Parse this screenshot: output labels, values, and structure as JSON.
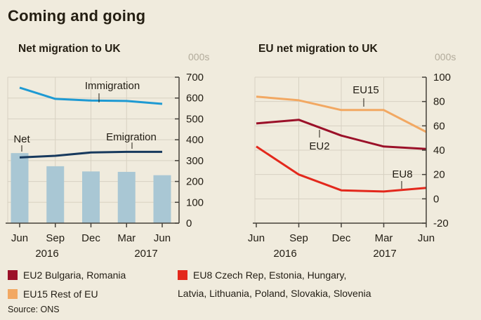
{
  "title": "Coming and going",
  "source": "Source: ONS",
  "colors": {
    "background": "#f0ebdd",
    "grid": "#d7d1c2",
    "axis": "#45413a",
    "text": "#221d14",
    "muted_units": "#b2ab9b",
    "immigration": "#1e9ad3",
    "emigration": "#17395d",
    "net_bar": "#a9c7d4",
    "eu15": "#f2a862",
    "eu2": "#9b1129",
    "eu8": "#e3281c"
  },
  "chart_data": [
    {
      "type": "line",
      "title": "Net migration to UK",
      "unit_label": "000s",
      "categories": [
        "Jun",
        "Sep",
        "Dec",
        "Mar",
        "Jun"
      ],
      "year_labels": [
        "2016",
        "2017"
      ],
      "ylim": [
        0,
        700
      ],
      "ytick_step": 100,
      "grid": true,
      "legend_position": "inline-annotations",
      "series": [
        {
          "name": "Immigration",
          "kind": "line",
          "color": "#1e9ad3",
          "values": [
            650,
            596,
            588,
            586,
            572
          ]
        },
        {
          "name": "Emigration",
          "kind": "line",
          "color": "#17395d",
          "values": [
            315,
            323,
            339,
            342,
            342
          ]
        },
        {
          "name": "Net",
          "kind": "bar",
          "color": "#a9c7d4",
          "values": [
            336,
            273,
            248,
            246,
            230
          ]
        }
      ]
    },
    {
      "type": "line",
      "title": "EU net migration to UK",
      "unit_label": "000s",
      "categories": [
        "Jun",
        "Sep",
        "Dec",
        "Mar",
        "Jun"
      ],
      "year_labels": [
        "2016",
        "2017"
      ],
      "ylim": [
        -20,
        100
      ],
      "ytick_step": 20,
      "grid": true,
      "legend_position": "inline-annotations",
      "series": [
        {
          "name": "EU15",
          "kind": "line",
          "color": "#f2a862",
          "values": [
            84,
            81,
            73,
            73,
            55
          ]
        },
        {
          "name": "EU2",
          "kind": "line",
          "color": "#9b1129",
          "values": [
            62,
            65,
            52,
            43,
            41
          ]
        },
        {
          "name": "EU8",
          "kind": "line",
          "color": "#e3281c",
          "values": [
            43,
            20,
            7,
            6,
            9
          ]
        }
      ]
    }
  ],
  "legend": [
    {
      "swatch_color": "#9b1129",
      "label": "EU2 Bulgaria, Romania"
    },
    {
      "swatch_color": "#f2a862",
      "label": "EU15 Rest of EU"
    },
    {
      "swatch_color": "#e3281c",
      "label_line1": "EU8 Czech Rep, Estonia, Hungary,",
      "label_line2": "Latvia, Lithuania, Poland, Slovakia, Slovenia"
    }
  ]
}
